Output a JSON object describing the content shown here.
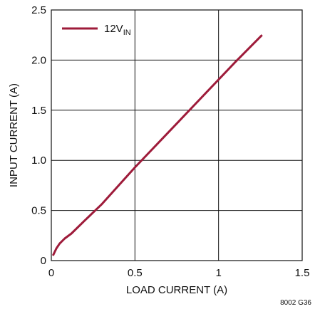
{
  "chart_data": {
    "type": "line",
    "title": "",
    "xlabel": "LOAD CURRENT (A)",
    "ylabel": "INPUT CURRENT (A)",
    "xlim": [
      0,
      1.5
    ],
    "ylim": [
      0,
      2.5
    ],
    "x_ticks": [
      0,
      0.5,
      1,
      1.5
    ],
    "x_tick_labels": [
      "0",
      "0.5",
      "1",
      "1.5"
    ],
    "y_ticks": [
      0,
      0.5,
      1,
      1.5,
      2,
      2.5
    ],
    "y_tick_labels": [
      "0",
      "0.5",
      "1.0",
      "1.5",
      "2.0",
      "2.5"
    ],
    "grid": true,
    "legend_position": "top-left",
    "series": [
      {
        "name": "12V",
        "name_subscript": "IN",
        "color": "#9e1b3a",
        "x": [
          0.01,
          0.03,
          0.05,
          0.08,
          0.12,
          0.2,
          0.3,
          0.5,
          0.7,
          0.9,
          1.1,
          1.26
        ],
        "y": [
          0.05,
          0.12,
          0.17,
          0.22,
          0.27,
          0.4,
          0.56,
          0.93,
          1.28,
          1.63,
          1.98,
          2.25
        ]
      }
    ],
    "figure_id": "8002 G36"
  }
}
